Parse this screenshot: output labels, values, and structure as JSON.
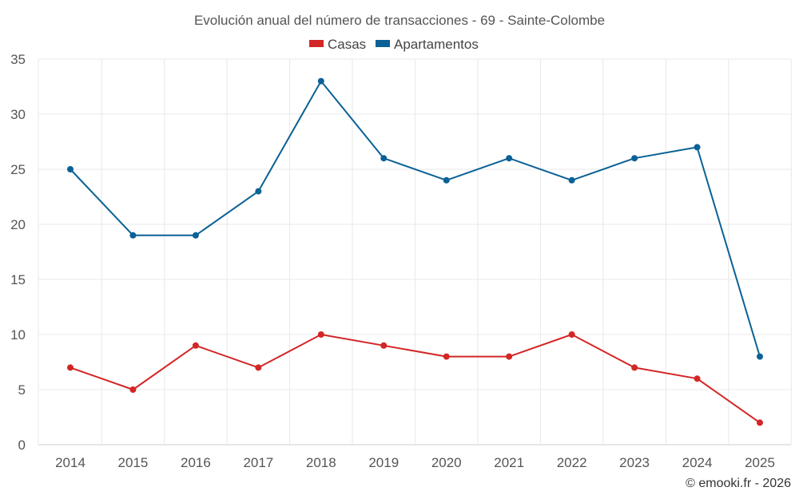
{
  "chart_data": {
    "type": "line",
    "title": "Evolución anual del número de transacciones - 69 - Sainte-Colombe",
    "categories": [
      "2014",
      "2015",
      "2016",
      "2017",
      "2018",
      "2019",
      "2020",
      "2021",
      "2022",
      "2023",
      "2024",
      "2025"
    ],
    "series": [
      {
        "name": "Casas",
        "color": "#d32626",
        "values": [
          7,
          5,
          9,
          7,
          10,
          9,
          8,
          8,
          10,
          7,
          6,
          2
        ]
      },
      {
        "name": "Apartamentos",
        "color": "#0a6196",
        "values": [
          25,
          19,
          19,
          23,
          33,
          26,
          24,
          26,
          24,
          26,
          27,
          8
        ]
      }
    ],
    "ylim": [
      0,
      35
    ],
    "yticks": [
      0,
      5,
      10,
      15,
      20,
      25,
      30,
      35
    ],
    "xlabel": "",
    "ylabel": "",
    "legend": "top-center",
    "grid": true
  },
  "credit": "© emooki.fr - 2026"
}
